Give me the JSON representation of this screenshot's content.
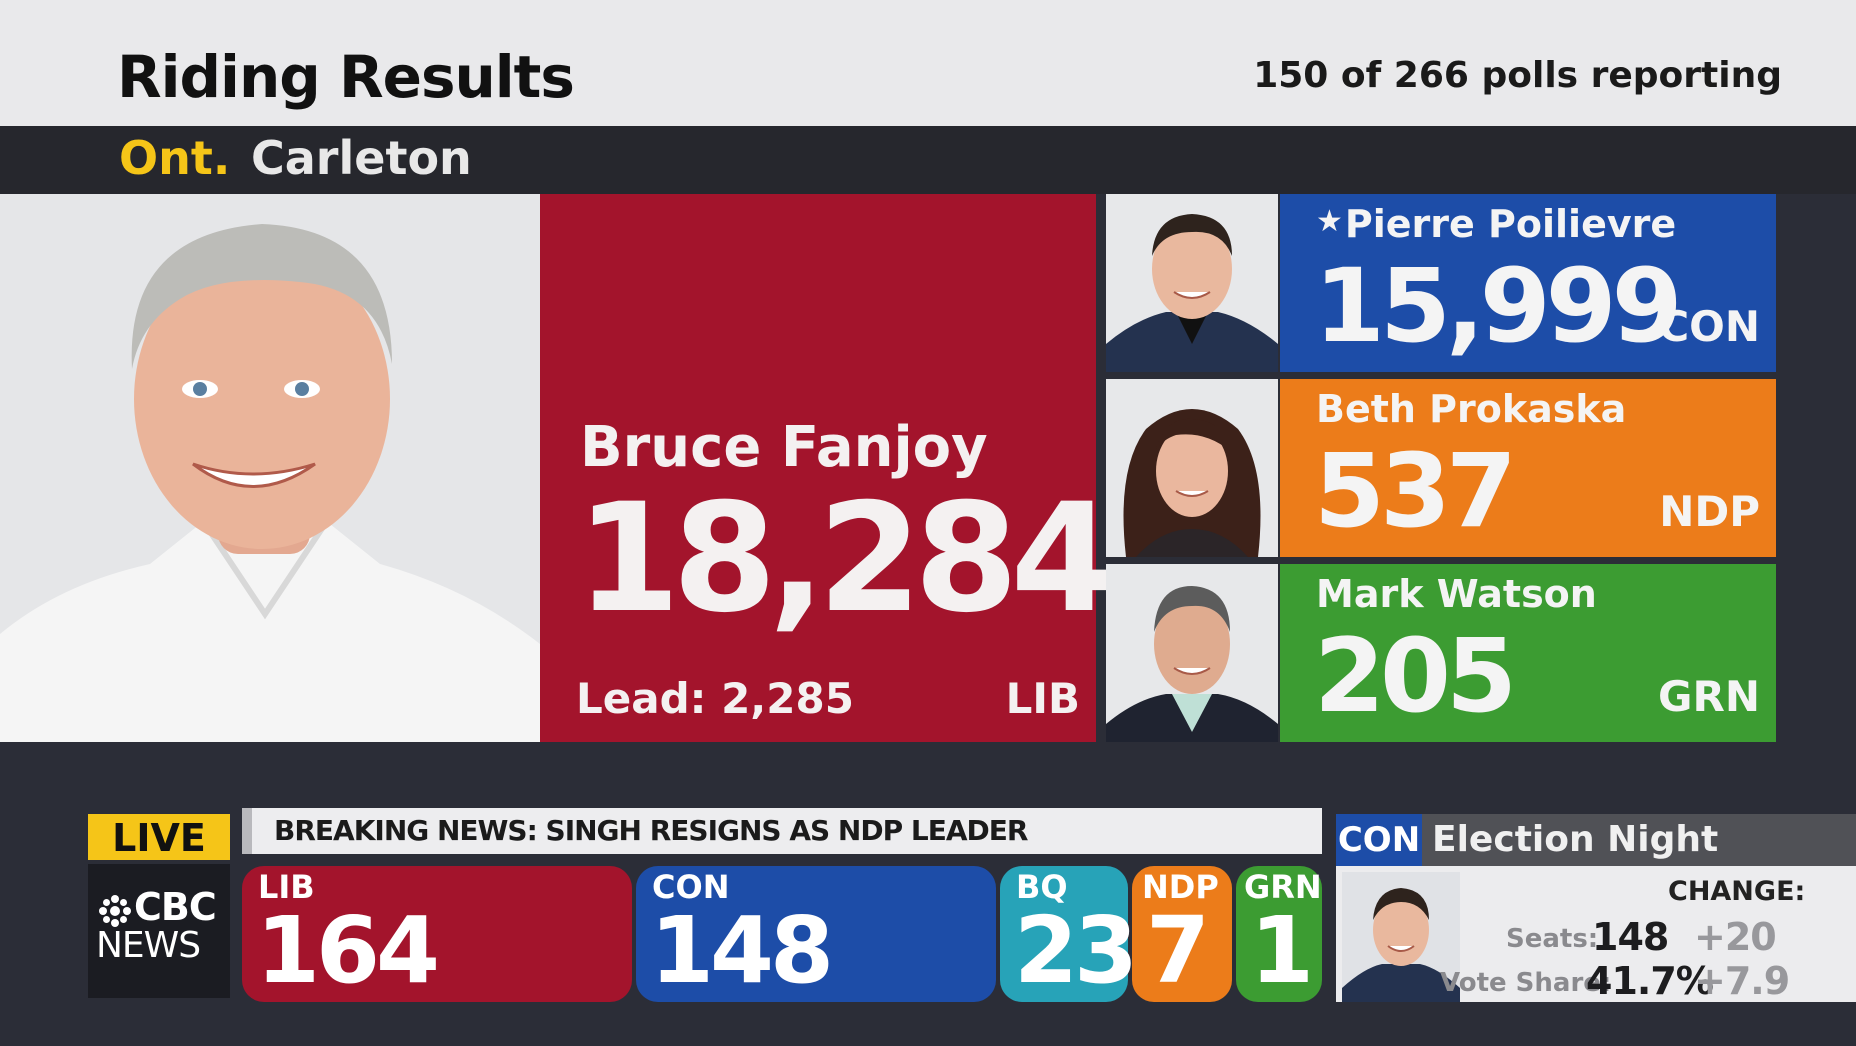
{
  "header": {
    "title": "Riding Results",
    "polls_reporting": "150 of 266 polls reporting",
    "province": "Ont.",
    "riding": "Carleton"
  },
  "leader": {
    "name": "Bruce Fanjoy",
    "votes": "18,284",
    "lead": "Lead: 2,285",
    "party": "LIB",
    "color": "#a3142c"
  },
  "challengers": [
    {
      "name": "Pierre Poilievre",
      "incumbent_star": "★",
      "votes": "15,999",
      "party": "CON",
      "color": "#1d4da8"
    },
    {
      "name": "Beth Prokaska",
      "votes": "537",
      "party": "NDP",
      "color": "#ec7c1a"
    },
    {
      "name": "Mark Watson",
      "votes": "205",
      "party": "GRN",
      "color": "#3c9c32"
    }
  ],
  "live_badge": "LIVE",
  "broadcaster": {
    "line1": "CBC",
    "line2": "NEWS"
  },
  "ticker": "BREAKING NEWS: SINGH RESIGNS AS NDP LEADER",
  "seat_tally": [
    {
      "party": "LIB",
      "seats": "164",
      "color": "#a3142c"
    },
    {
      "party": "CON",
      "seats": "148",
      "color": "#1d4da8"
    },
    {
      "party": "BQ",
      "seats": "23",
      "color": "#27a3b8"
    },
    {
      "party": "NDP",
      "seats": "7",
      "color": "#ec7c1a"
    },
    {
      "party": "GRN",
      "seats": "1",
      "color": "#3c9c32"
    }
  ],
  "party_card": {
    "party": "CON",
    "title": "Election Night",
    "change_header": "CHANGE:",
    "seats_label": "Seats:",
    "seats": "148",
    "seats_change": "+20",
    "vote_share_label": "Vote Share:",
    "vote_share": "41.7%",
    "vote_share_change": "+7.9"
  }
}
